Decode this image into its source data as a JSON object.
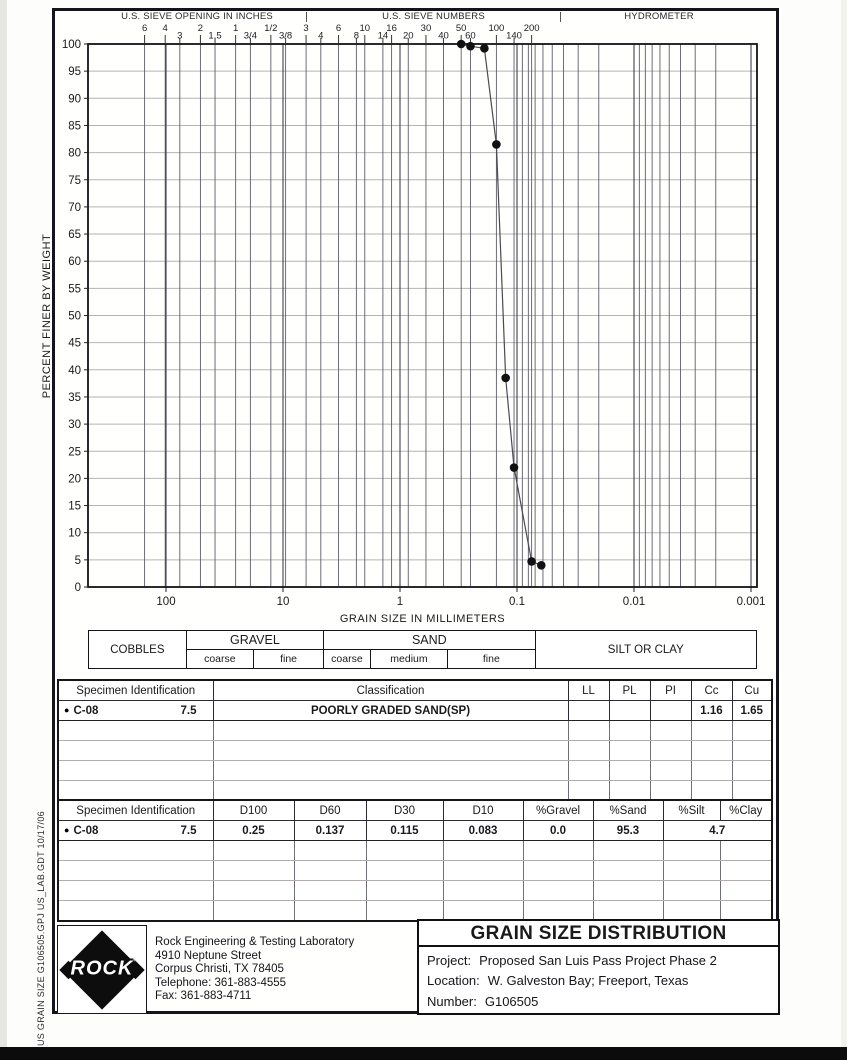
{
  "report": {
    "title": "GRAIN SIZE DISTRIBUTION",
    "sidebar_text": "US GRAIN SIZE  G106505.GPJ  US_LAB.GDT  10/17/06"
  },
  "header": {
    "sections": [
      "U.S. SIEVE OPENING IN INCHES",
      "U.S. SIEVE NUMBERS",
      "HYDROMETER"
    ]
  },
  "chart_data": {
    "type": "line",
    "title": "",
    "xlabel": "GRAIN SIZE IN MILLIMETERS",
    "ylabel": "PERCENT FINER BY WEIGHT",
    "x_scale": "log",
    "x_ticks": [
      {
        "label": "100",
        "mm": 100
      },
      {
        "label": "10",
        "mm": 10
      },
      {
        "label": "1",
        "mm": 1
      },
      {
        "label": "0.1",
        "mm": 0.1
      },
      {
        "label": "0.01",
        "mm": 0.01
      },
      {
        "label": "0.001",
        "mm": 0.001
      }
    ],
    "y_min": 0,
    "y_max": 100,
    "y_step": 5,
    "sieve_labels": [
      {
        "label": "6",
        "mm": 152.4,
        "row": "hi"
      },
      {
        "label": "4",
        "mm": 101.6,
        "row": "hi"
      },
      {
        "label": "3",
        "mm": 76.2,
        "row": "lo"
      },
      {
        "label": "2",
        "mm": 50.8,
        "row": "hi"
      },
      {
        "label": "1.5",
        "mm": 38.1,
        "row": "lo"
      },
      {
        "label": "1",
        "mm": 25.4,
        "row": "hi"
      },
      {
        "label": "3/4",
        "mm": 19,
        "row": "lo"
      },
      {
        "label": "1/2",
        "mm": 12.7,
        "row": "hi"
      },
      {
        "label": "3/8",
        "mm": 9.5,
        "row": "lo"
      },
      {
        "label": "3",
        "mm": 6.35,
        "row": "hi"
      },
      {
        "label": "4",
        "mm": 4.75,
        "row": "lo"
      },
      {
        "label": "6",
        "mm": 3.35,
        "row": "hi"
      },
      {
        "label": "8",
        "mm": 2.36,
        "row": "lo"
      },
      {
        "label": "10",
        "mm": 2.0,
        "row": "hi"
      },
      {
        "label": "14",
        "mm": 1.4,
        "row": "lo"
      },
      {
        "label": "16",
        "mm": 1.18,
        "row": "hi"
      },
      {
        "label": "20",
        "mm": 0.85,
        "row": "lo"
      },
      {
        "label": "30",
        "mm": 0.6,
        "row": "hi"
      },
      {
        "label": "40",
        "mm": 0.425,
        "row": "lo"
      },
      {
        "label": "50",
        "mm": 0.3,
        "row": "hi"
      },
      {
        "label": "60",
        "mm": 0.25,
        "row": "lo"
      },
      {
        "label": "100",
        "mm": 0.15,
        "row": "hi"
      },
      {
        "label": "140",
        "mm": 0.106,
        "row": "lo"
      },
      {
        "label": "200",
        "mm": 0.075,
        "row": "hi"
      }
    ],
    "minor_lines_mm": [
      0.09,
      0.08,
      0.07,
      0.06,
      0.05,
      0.04,
      0.03,
      0.02,
      0.009,
      0.008,
      0.007,
      0.006,
      0.005,
      0.004,
      0.003,
      0.002
    ],
    "series": [
      {
        "name": "C-08  7.5",
        "points": [
          {
            "mm": 0.3,
            "percent": 100
          },
          {
            "mm": 0.25,
            "percent": 99.6
          },
          {
            "mm": 0.19,
            "percent": 99.2
          },
          {
            "mm": 0.15,
            "percent": 81.5
          },
          {
            "mm": 0.125,
            "percent": 38.5
          },
          {
            "mm": 0.106,
            "percent": 22.0
          },
          {
            "mm": 0.075,
            "percent": 4.7
          },
          {
            "mm": 0.062,
            "percent": 4.0
          }
        ]
      }
    ]
  },
  "classification_bar": {
    "cobbles": "COBBLES",
    "gravel": "GRAVEL",
    "gravel_sub": [
      "coarse",
      "fine"
    ],
    "sand": "SAND",
    "sand_sub": [
      "coarse",
      "medium",
      "fine"
    ],
    "fines": "SILT OR CLAY"
  },
  "spec_table": {
    "headers": [
      "Specimen Identification",
      "Classification",
      "LL",
      "PL",
      "PI",
      "Cc",
      "Cu"
    ],
    "rows": [
      {
        "marker": "●",
        "id": "C-08",
        "depth": "7.5",
        "classification": "POORLY GRADED SAND(SP)",
        "ll": "",
        "pl": "",
        "pi": "",
        "cc": "1.16",
        "cu": "1.65"
      }
    ],
    "empty_row_count": 4
  },
  "size_table": {
    "headers": [
      "Specimen Identification",
      "D100",
      "D60",
      "D30",
      "D10",
      "%Gravel",
      "%Sand",
      "%Silt",
      "%Clay"
    ],
    "rows": [
      {
        "marker": "●",
        "id": "C-08",
        "depth": "7.5",
        "d100": "0.25",
        "d60": "0.137",
        "d30": "0.115",
        "d10": "0.083",
        "gravel": "0.0",
        "sand": "95.3",
        "silt_clay": "4.7"
      }
    ],
    "empty_row_count": 4
  },
  "footer": {
    "logo_word": "ROCK",
    "company_lines": [
      "Rock Engineering & Testing Laboratory",
      "4910 Neptune Street",
      "Corpus Christi, TX 78405",
      "Telephone:  361-883-4555",
      "Fax:  361-883-4711"
    ],
    "fields": [
      {
        "label": "Project:",
        "value": "Proposed San Luis Pass Project Phase 2"
      },
      {
        "label": "Location:",
        "value": "W. Galveston Bay; Freeport, Texas"
      },
      {
        "label": "Number:",
        "value": "G106505"
      }
    ]
  }
}
